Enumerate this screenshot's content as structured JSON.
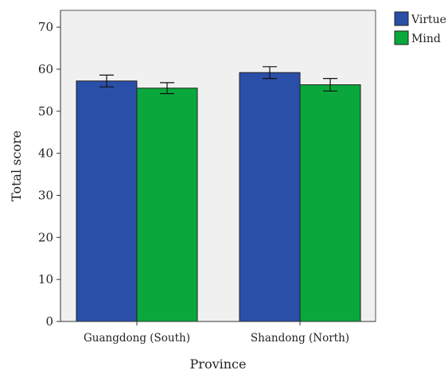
{
  "chart_data": {
    "type": "bar",
    "title": "",
    "xlabel": "Province",
    "ylabel": "Total score",
    "categories": [
      "Guangdong (South)",
      "Shandong (North)"
    ],
    "series": [
      {
        "name": "Virtue",
        "values": [
          57.2,
          59.2
        ],
        "error_low": [
          55.8,
          57.8
        ],
        "error_high": [
          58.6,
          60.6
        ],
        "color": "#2a4fa8"
      },
      {
        "name": "Mind",
        "values": [
          55.5,
          56.3
        ],
        "error_low": [
          54.2,
          54.8
        ],
        "error_high": [
          56.8,
          57.8
        ],
        "color": "#0aa83c"
      }
    ],
    "ylim": [
      0,
      74
    ],
    "yticks": [
      0,
      10,
      20,
      30,
      40,
      50,
      60,
      70
    ],
    "grid": false,
    "plot_background": "#f0f0f0",
    "legend_position": "top-right",
    "error_bars": true
  }
}
